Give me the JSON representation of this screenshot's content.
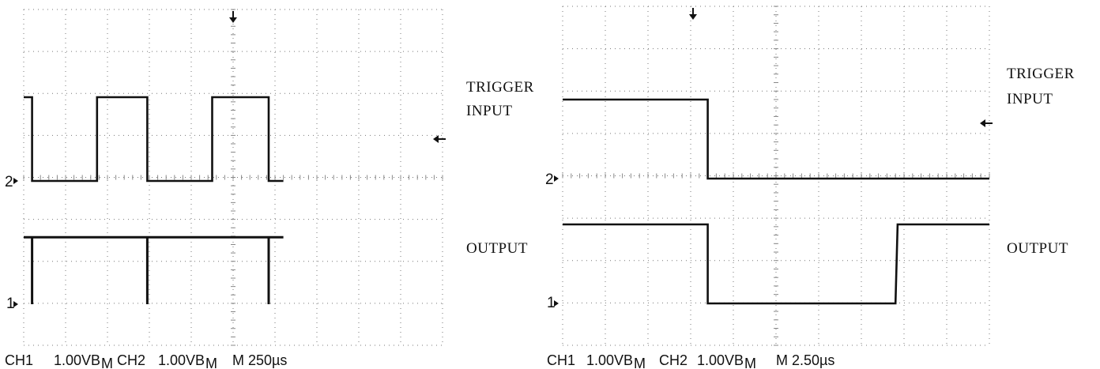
{
  "chart_data": [
    {
      "type": "line",
      "screen": {
        "x_divisions": 10,
        "y_divisions": 8
      },
      "grid": "dotted",
      "trigger_input": {
        "label_lines": [
          "TRIGGER",
          "INPUT"
        ],
        "ground_marker": "2",
        "level_div": 1.0,
        "points": [
          [
            0.0,
            2.0
          ],
          [
            0.2,
            2.0
          ],
          [
            0.2,
            0.0
          ],
          [
            1.75,
            0.0
          ],
          [
            1.75,
            2.0
          ],
          [
            2.95,
            2.0
          ],
          [
            2.95,
            0.0
          ],
          [
            4.5,
            0.0
          ],
          [
            4.5,
            2.0
          ],
          [
            5.85,
            2.0
          ],
          [
            5.85,
            0.0
          ],
          [
            6.2,
            0.0
          ]
        ]
      },
      "output": {
        "label": "OUTPUT",
        "ground_marker": "1",
        "points": [
          [
            0.0,
            1.6
          ],
          [
            0.2,
            1.6
          ],
          [
            0.2,
            0.0
          ],
          [
            0.2,
            1.6
          ],
          [
            2.95,
            1.6
          ],
          [
            2.95,
            0.0
          ],
          [
            2.95,
            1.6
          ],
          [
            5.85,
            1.6
          ],
          [
            5.85,
            0.0
          ],
          [
            5.85,
            1.6
          ],
          [
            6.2,
            1.6
          ]
        ]
      },
      "status": {
        "ch1": "CH1",
        "ch1_scale": "1.00VB",
        "ch1_sub": "M",
        "ch2": "CH2",
        "ch2_scale": "1.00VB",
        "ch2_sub": "M",
        "time": "M 250µs"
      }
    },
    {
      "type": "line",
      "screen": {
        "x_divisions": 10,
        "y_divisions": 8
      },
      "grid": "dotted",
      "trigger_input": {
        "label_lines": [
          "TRIGGER",
          "INPUT"
        ],
        "ground_marker": "2",
        "level_div": 1.4,
        "points": [
          [
            0.0,
            2.0
          ],
          [
            3.4,
            2.0
          ],
          [
            3.4,
            0.0
          ],
          [
            10.0,
            0.0
          ]
        ]
      },
      "output": {
        "label": "OUTPUT",
        "ground_marker": "1",
        "points": [
          [
            0.0,
            2.0
          ],
          [
            3.4,
            2.0
          ],
          [
            3.4,
            0.0
          ],
          [
            7.8,
            0.0
          ],
          [
            7.85,
            2.0
          ],
          [
            10.0,
            2.0
          ]
        ]
      },
      "status": {
        "ch1": "CH1",
        "ch1_scale": "1.00VB",
        "ch1_sub": "M",
        "ch2": "CH2",
        "ch2_scale": "1.00VB",
        "ch2_sub": "M",
        "time": "M 2.50µs"
      }
    }
  ]
}
